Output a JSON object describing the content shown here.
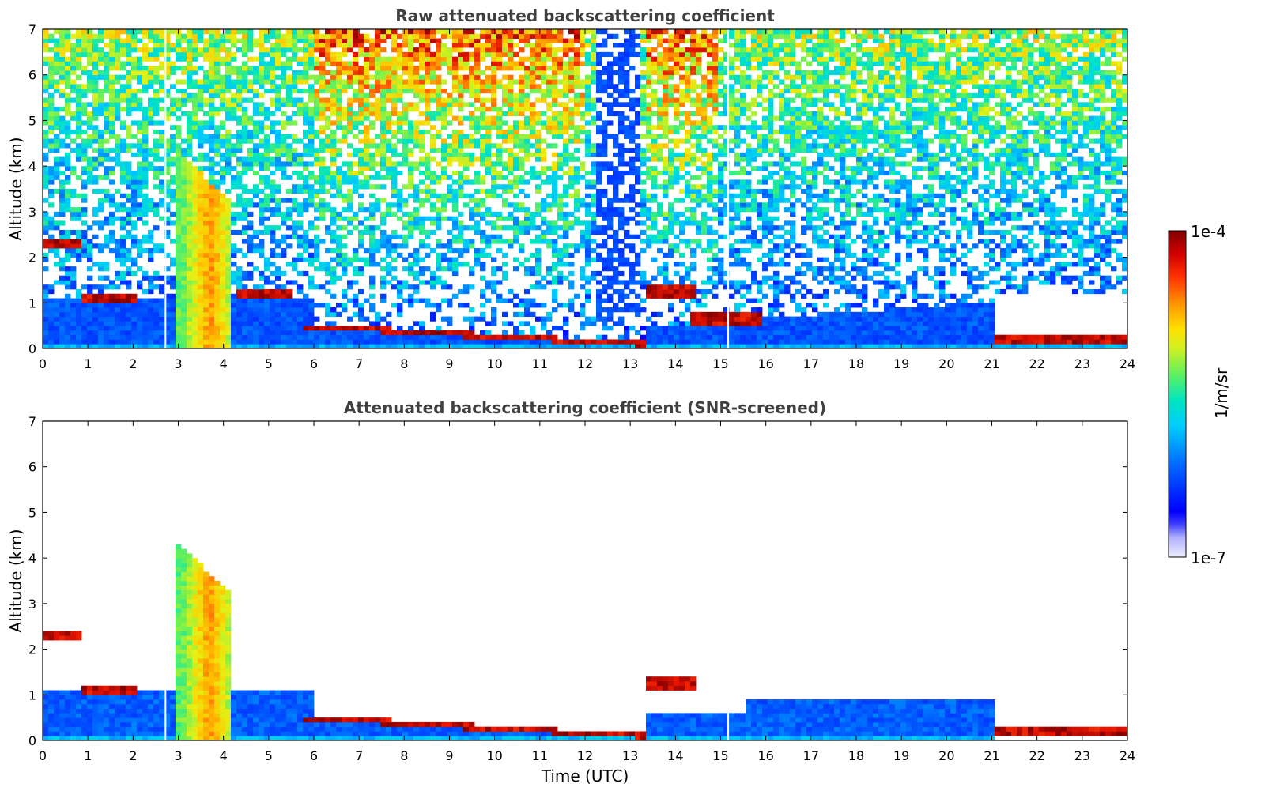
{
  "chart_data": [
    {
      "type": "heatmap",
      "title": "Raw attenuated backscattering coefficient",
      "xlabel": "",
      "ylabel": "Altitude (km)",
      "xlim": [
        0,
        24
      ],
      "ylim": [
        0,
        7
      ],
      "x_ticks": [
        "0",
        "1",
        "2",
        "3",
        "4",
        "5",
        "6",
        "7",
        "8",
        "9",
        "10",
        "11",
        "12",
        "13",
        "14",
        "15",
        "16",
        "17",
        "18",
        "19",
        "20",
        "21",
        "22",
        "23",
        "24"
      ],
      "y_ticks": [
        "0",
        "1",
        "2",
        "3",
        "4",
        "5",
        "6",
        "7"
      ],
      "screened": false,
      "features": [
        {
          "name": "noise_background",
          "description": "noisy background signal increasing with altitude, strongest 6-12 UTC and 13-15 UTC"
        },
        {
          "name": "low_signal_gap",
          "x": [
            12.3,
            13.2
          ],
          "altitude_km": [
            0.5,
            7
          ]
        },
        {
          "name": "clear_band",
          "x": [
            21.1,
            24
          ],
          "altitude_km": [
            0.35,
            1.2
          ]
        },
        {
          "name": "cloud_layer_low_left",
          "x": [
            0,
            0.9
          ],
          "altitude_km": [
            2.2,
            2.4
          ]
        },
        {
          "name": "cloud_layer",
          "x": [
            0.9,
            2.1
          ],
          "altitude_km": [
            1.05,
            1.15
          ]
        },
        {
          "name": "precipitation_shaft",
          "x": [
            3.0,
            4.2
          ],
          "altitude_km": [
            0,
            4.3
          ]
        },
        {
          "name": "cloud_layer",
          "x": [
            4.3,
            5.5
          ],
          "altitude_km": [
            1.1,
            1.25
          ]
        },
        {
          "name": "boundary_layer_cloud",
          "x": [
            5.8,
            13.3
          ],
          "altitude_km_start": 0.5,
          "altitude_km_end": 0.1
        },
        {
          "name": "cloud_layer",
          "x": [
            13.3,
            14.4
          ],
          "altitude_km": [
            1.15,
            1.35
          ]
        },
        {
          "name": "cloud_layer",
          "x": [
            14.3,
            15.9
          ],
          "altitude_km": [
            0.5,
            0.8
          ]
        },
        {
          "name": "cloud_layer",
          "x": [
            21.1,
            24
          ],
          "altitude_km": [
            0.15,
            0.3
          ]
        }
      ]
    },
    {
      "type": "heatmap",
      "title": "Attenuated backscattering coefficient (SNR-screened)",
      "xlabel": "Time (UTC)",
      "ylabel": "Altitude (km)",
      "xlim": [
        0,
        24
      ],
      "ylim": [
        0,
        7
      ],
      "x_ticks": [
        "0",
        "1",
        "2",
        "3",
        "4",
        "5",
        "6",
        "7",
        "8",
        "9",
        "10",
        "11",
        "12",
        "13",
        "14",
        "15",
        "16",
        "17",
        "18",
        "19",
        "20",
        "21",
        "22",
        "23",
        "24"
      ],
      "y_ticks": [
        "0",
        "1",
        "2",
        "3",
        "4",
        "5",
        "6",
        "7"
      ],
      "screened": true,
      "features": [
        {
          "name": "aerosol_layer",
          "x": [
            0,
            21.1
          ],
          "altitude_km": [
            0,
            1.0
          ]
        },
        {
          "name": "cloud_layer",
          "x": [
            0,
            0.9
          ],
          "altitude_km": [
            2.2,
            2.4
          ]
        },
        {
          "name": "cloud_layer",
          "x": [
            0.9,
            2.1
          ],
          "altitude_km": [
            1.05,
            1.15
          ]
        },
        {
          "name": "precipitation_shaft",
          "x": [
            3.0,
            4.2
          ],
          "altitude_km": [
            0,
            4.3
          ]
        },
        {
          "name": "boundary_layer_cloud",
          "x": [
            5.8,
            13.3
          ],
          "altitude_km_start": 0.5,
          "altitude_km_end": 0.1
        },
        {
          "name": "cloud_layer",
          "x": [
            13.3,
            14.4
          ],
          "altitude_km": [
            1.15,
            1.35
          ]
        },
        {
          "name": "cloud_layer",
          "x": [
            21.1,
            24
          ],
          "altitude_km": [
            0.15,
            0.3
          ]
        }
      ]
    }
  ],
  "colorbar": {
    "max_label": "1e-4",
    "min_label": "1e-7",
    "unit_label": "1/m/sr",
    "colors": [
      "#e8e8ff",
      "#b8b8ff",
      "#8888ff",
      "#0000ff",
      "#0040ff",
      "#0080ff",
      "#00c0ff",
      "#00e0e0",
      "#40f0a0",
      "#a0ff40",
      "#ffff00",
      "#ffc000",
      "#ff8000",
      "#ff2000",
      "#c00000",
      "#800000"
    ]
  }
}
